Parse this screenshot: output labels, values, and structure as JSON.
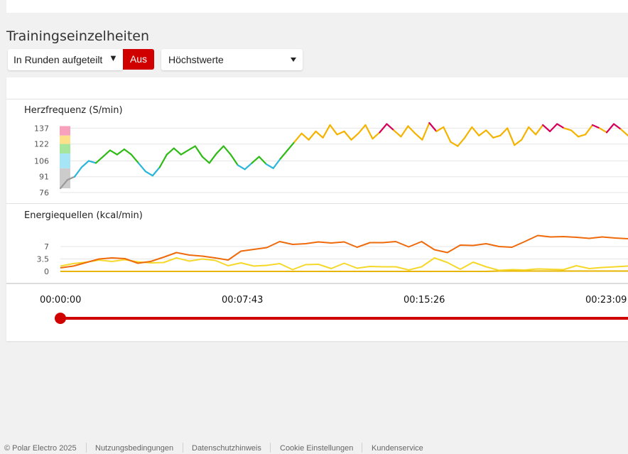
{
  "section": {
    "title": "Trainingseinzelheiten"
  },
  "controls": {
    "split_label": "In Runden aufgeteilt",
    "split_arrow": "▼",
    "toggle_label": "Aus",
    "metric_label": "Höchstwerte"
  },
  "heart_chart": {
    "title": "Herzfrequenz (S/min)",
    "ticks": [
      "137",
      "122",
      "106",
      "91",
      "76"
    ],
    "zone_colors": [
      "#f7a1bd",
      "#fde08a",
      "#a6e59c",
      "#a5e5f5",
      "#cccccc"
    ],
    "line_colors": {
      "zone1": "#9a9a9a",
      "zone2": "#29b6d8",
      "zone3": "#2dbb14",
      "zone4": "#f5b300",
      "zone5": "#d6005b"
    }
  },
  "energy_chart": {
    "title": "Energiequellen (kcal/min)",
    "ticks": [
      "7",
      "3.5",
      "0"
    ],
    "series_colors": [
      "#ef6a0b",
      "#f5d82a",
      "#e7b500"
    ]
  },
  "timeline": {
    "labels": [
      "00:00:00",
      "00:07:43",
      "00:15:26",
      "00:23:09"
    ],
    "color": "#d10000"
  },
  "footer": {
    "copyright": "© Polar Electro 2025",
    "links": [
      "Nutzungsbedingungen",
      "Datenschutzhinweis",
      "Cookie Einstellungen",
      "Kundenservice"
    ]
  },
  "chart_data": [
    {
      "type": "line",
      "title": "Herzfrequenz (S/min)",
      "ylabel": "S/min",
      "ylim": [
        76,
        142
      ],
      "yticks": [
        76,
        91,
        106,
        122,
        137
      ],
      "x": [
        0,
        10,
        20,
        30,
        40,
        50,
        60,
        70,
        80,
        90,
        100,
        110,
        120,
        130,
        140,
        150,
        160,
        170,
        180,
        190,
        200,
        210,
        220,
        230,
        240,
        250,
        260,
        270,
        280,
        290,
        300,
        310,
        320,
        330,
        340,
        350,
        360,
        370,
        380,
        390,
        400,
        410,
        420,
        430,
        440,
        450,
        460,
        470,
        480,
        490,
        500,
        510,
        520,
        530,
        540,
        550,
        560,
        570,
        580,
        590,
        600,
        610,
        620,
        630,
        640,
        650,
        660,
        670,
        680,
        690,
        700,
        710,
        720,
        730,
        740,
        750,
        760,
        770,
        780,
        790,
        800
      ],
      "values": [
        80,
        88,
        91,
        100,
        106,
        104,
        110,
        116,
        112,
        117,
        112,
        104,
        96,
        92,
        100,
        112,
        118,
        112,
        116,
        120,
        110,
        104,
        113,
        120,
        112,
        102,
        98,
        104,
        110,
        103,
        99,
        108,
        116,
        124,
        132,
        126,
        134,
        128,
        140,
        131,
        134,
        126,
        132,
        140,
        127,
        133,
        141,
        135,
        129,
        139,
        132,
        126,
        142,
        134,
        138,
        124,
        120,
        128,
        138,
        130,
        135,
        128,
        130,
        137,
        121,
        126,
        138,
        131,
        140,
        134,
        141,
        137,
        135,
        129,
        131,
        140,
        137,
        133,
        141,
        136,
        130
      ]
    },
    {
      "type": "line",
      "title": "Energiequellen (kcal/min)",
      "ylabel": "kcal/min",
      "ylim": [
        0,
        10
      ],
      "yticks": [
        0,
        3.5,
        7
      ],
      "series": [
        {
          "values": [
            1.0,
            1.5,
            2.5,
            3.5,
            3.8,
            3.6,
            2.3,
            2.8,
            4.0,
            5.3,
            4.6,
            4.3,
            3.8,
            3.2,
            5.7,
            6.2,
            6.7,
            8.4,
            7.6,
            7.8,
            8.3,
            8.0,
            8.3,
            6.8,
            8.1,
            8.1,
            8.4,
            6.9,
            8.4,
            6.1,
            5.3,
            7.4,
            7.3,
            7.8,
            7.0,
            6.8,
            8.4,
            10.1,
            9.7,
            9.8,
            9.6,
            9.3,
            9.7,
            9.4,
            9.2
          ]
        },
        {
          "values": [
            1.5,
            2.2,
            2.6,
            3.2,
            2.8,
            3.3,
            2.7,
            2.4,
            2.5,
            3.8,
            2.9,
            3.5,
            3.1,
            1.6,
            2.4,
            1.5,
            1.7,
            2.2,
            0.5,
            1.9,
            2.0,
            0.8,
            2.3,
            0.9,
            1.4,
            1.3,
            1.3,
            0.4,
            1.3,
            3.8,
            2.5,
            0.6,
            2.6,
            1.3,
            0.3,
            0.5,
            0.4,
            0.7,
            0.6,
            0.5,
            1.6,
            0.8,
            1.1,
            1.3,
            1.5
          ]
        },
        {
          "values": [
            0.0,
            0.0,
            0.0,
            0.0,
            0.0,
            0.0,
            0.0,
            0.0,
            0.0,
            0.0,
            0.0,
            0.0,
            0.0,
            0.0,
            0.0,
            0.0,
            0.0,
            0.0,
            0.0,
            0.0,
            0.0,
            0.0,
            0.0,
            0.0,
            0.0,
            0.0,
            0.0,
            0.0,
            0.0,
            0.0,
            0.0,
            0.0,
            0.0,
            0.0,
            0.1,
            0.1,
            0.1,
            0.1,
            0.1,
            0.1,
            0.1,
            0.1,
            0.1,
            0.1,
            0.1
          ]
        }
      ]
    }
  ]
}
